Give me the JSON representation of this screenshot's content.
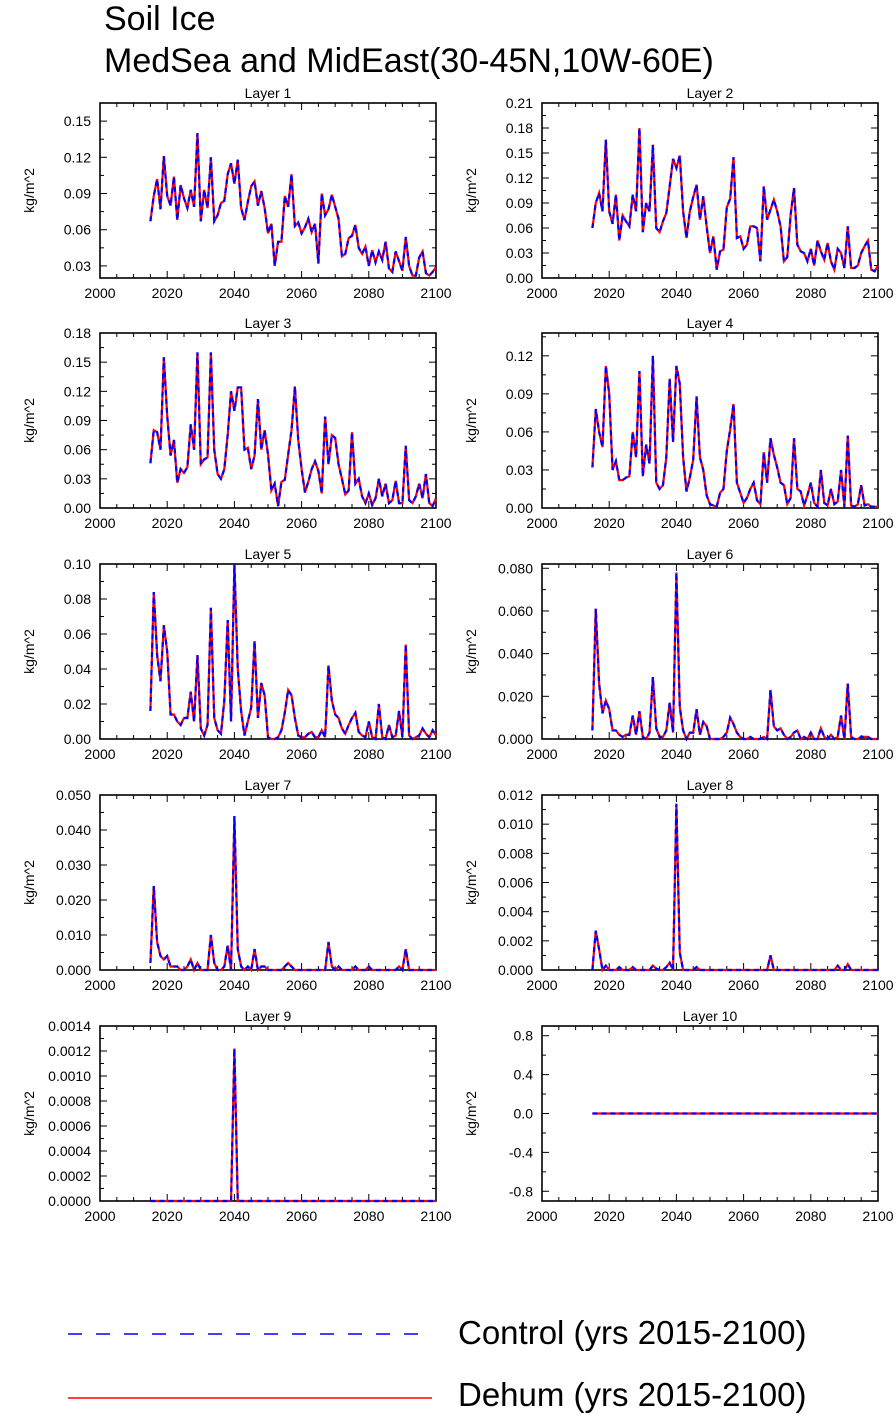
{
  "title_line1": "Soil Ice",
  "title_line2": "MedSea and MidEast(30-45N,10W-60E)",
  "legend": {
    "control_label": "Control (yrs 2015-2100)",
    "dehum_label": "Dehum (yrs 2015-2100)"
  },
  "colors": {
    "control": "#0000ff",
    "dehum": "#ff0000",
    "axis": "#000000"
  },
  "chart_data": [
    {
      "type": "line",
      "title": "Layer 1",
      "ylabel": "kg/m^2",
      "xlim": [
        2000,
        2100
      ],
      "ylim": [
        0.02,
        0.165
      ],
      "xticks": [
        2000,
        2020,
        2040,
        2060,
        2080,
        2100
      ],
      "yticks": [
        0.03,
        0.06,
        0.09,
        0.12,
        0.15
      ],
      "ytick_labels": [
        "0.03",
        "0.06",
        "0.09",
        "0.12",
        "0.15"
      ],
      "x_start": 2015,
      "values": [
        0.067,
        0.088,
        0.102,
        0.077,
        0.121,
        0.088,
        0.08,
        0.104,
        0.068,
        0.097,
        0.086,
        0.078,
        0.093,
        0.079,
        0.14,
        0.067,
        0.093,
        0.078,
        0.12,
        0.067,
        0.072,
        0.082,
        0.084,
        0.106,
        0.115,
        0.098,
        0.118,
        0.078,
        0.068,
        0.083,
        0.096,
        0.1,
        0.08,
        0.092,
        0.078,
        0.057,
        0.065,
        0.03,
        0.05,
        0.05,
        0.088,
        0.079,
        0.106,
        0.063,
        0.066,
        0.057,
        0.062,
        0.069,
        0.058,
        0.065,
        0.032,
        0.09,
        0.072,
        0.077,
        0.089,
        0.079,
        0.069,
        0.038,
        0.04,
        0.053,
        0.055,
        0.064,
        0.045,
        0.04,
        0.046,
        0.03,
        0.043,
        0.033,
        0.042,
        0.035,
        0.05,
        0.028,
        0.025,
        0.042,
        0.034,
        0.026,
        0.054,
        0.03,
        0.022,
        0.022,
        0.037,
        0.042,
        0.024,
        0.022,
        0.025,
        0.029
      ]
    },
    {
      "type": "line",
      "title": "Layer 2",
      "ylabel": "kg/m^2",
      "xlim": [
        2000,
        2100
      ],
      "ylim": [
        0.0,
        0.21
      ],
      "xticks": [
        2000,
        2020,
        2040,
        2060,
        2080,
        2100
      ],
      "yticks": [
        0.0,
        0.03,
        0.06,
        0.09,
        0.12,
        0.15,
        0.18,
        0.21
      ],
      "ytick_labels": [
        "0.00",
        "0.03",
        "0.06",
        "0.09",
        "0.12",
        "0.15",
        "0.18",
        "0.21"
      ],
      "x_start": 2015,
      "values": [
        0.06,
        0.09,
        0.102,
        0.08,
        0.166,
        0.08,
        0.065,
        0.1,
        0.045,
        0.075,
        0.068,
        0.062,
        0.1,
        0.08,
        0.18,
        0.055,
        0.09,
        0.08,
        0.16,
        0.06,
        0.055,
        0.068,
        0.078,
        0.11,
        0.143,
        0.132,
        0.147,
        0.08,
        0.048,
        0.08,
        0.097,
        0.112,
        0.07,
        0.098,
        0.062,
        0.03,
        0.05,
        0.01,
        0.032,
        0.034,
        0.085,
        0.095,
        0.145,
        0.048,
        0.05,
        0.035,
        0.04,
        0.062,
        0.062,
        0.06,
        0.02,
        0.11,
        0.07,
        0.082,
        0.094,
        0.08,
        0.062,
        0.02,
        0.025,
        0.076,
        0.108,
        0.04,
        0.032,
        0.03,
        0.02,
        0.035,
        0.015,
        0.045,
        0.032,
        0.022,
        0.042,
        0.02,
        0.01,
        0.035,
        0.03,
        0.012,
        0.062,
        0.012,
        0.012,
        0.015,
        0.03,
        0.038,
        0.045,
        0.01,
        0.008,
        0.015
      ]
    },
    {
      "type": "line",
      "title": "Layer 3",
      "ylabel": "kg/m^2",
      "xlim": [
        2000,
        2100
      ],
      "ylim": [
        0.0,
        0.18
      ],
      "xticks": [
        2000,
        2020,
        2040,
        2060,
        2080,
        2100
      ],
      "yticks": [
        0.0,
        0.03,
        0.06,
        0.09,
        0.12,
        0.15,
        0.18
      ],
      "ytick_labels": [
        "0.00",
        "0.03",
        "0.06",
        "0.09",
        "0.12",
        "0.15",
        "0.18"
      ],
      "x_start": 2015,
      "values": [
        0.046,
        0.08,
        0.078,
        0.06,
        0.155,
        0.095,
        0.054,
        0.07,
        0.026,
        0.04,
        0.036,
        0.042,
        0.086,
        0.06,
        0.16,
        0.045,
        0.05,
        0.052,
        0.16,
        0.06,
        0.035,
        0.03,
        0.04,
        0.075,
        0.12,
        0.1,
        0.124,
        0.124,
        0.06,
        0.062,
        0.04,
        0.054,
        0.112,
        0.06,
        0.08,
        0.055,
        0.018,
        0.025,
        0.002,
        0.027,
        0.029,
        0.055,
        0.08,
        0.125,
        0.07,
        0.04,
        0.016,
        0.027,
        0.04,
        0.048,
        0.038,
        0.015,
        0.094,
        0.045,
        0.075,
        0.072,
        0.045,
        0.03,
        0.014,
        0.018,
        0.078,
        0.025,
        0.03,
        0.012,
        0.005,
        0.015,
        0.003,
        0.01,
        0.03,
        0.012,
        0.025,
        0.005,
        0.008,
        0.028,
        0.005,
        0.005,
        0.064,
        0.008,
        0.005,
        0.012,
        0.025,
        0.01,
        0.035,
        0.005,
        0.002,
        0.01
      ]
    },
    {
      "type": "line",
      "title": "Layer 4",
      "ylabel": "kg/m^2",
      "xlim": [
        2000,
        2100
      ],
      "ylim": [
        0.0,
        0.138
      ],
      "xticks": [
        2000,
        2020,
        2040,
        2060,
        2080,
        2100
      ],
      "yticks": [
        0.0,
        0.03,
        0.06,
        0.09,
        0.12
      ],
      "ytick_labels": [
        "0.00",
        "0.03",
        "0.06",
        "0.09",
        "0.12"
      ],
      "x_start": 2015,
      "values": [
        0.032,
        0.078,
        0.06,
        0.048,
        0.112,
        0.09,
        0.03,
        0.037,
        0.022,
        0.022,
        0.024,
        0.025,
        0.06,
        0.04,
        0.108,
        0.025,
        0.05,
        0.035,
        0.12,
        0.02,
        0.015,
        0.018,
        0.04,
        0.102,
        0.052,
        0.112,
        0.098,
        0.04,
        0.013,
        0.024,
        0.038,
        0.088,
        0.04,
        0.03,
        0.01,
        0.003,
        0.002,
        0.001,
        0.012,
        0.015,
        0.045,
        0.062,
        0.082,
        0.02,
        0.012,
        0.004,
        0.008,
        0.015,
        0.02,
        0.006,
        0.003,
        0.044,
        0.02,
        0.055,
        0.042,
        0.032,
        0.02,
        0.018,
        0.003,
        0.008,
        0.055,
        0.015,
        0.013,
        0.002,
        0.01,
        0.02,
        0.004,
        0.001,
        0.03,
        0.004,
        0.002,
        0.015,
        0.003,
        0.005,
        0.03,
        0.001,
        0.057,
        0.002,
        0.001,
        0.003,
        0.018,
        0.002,
        0.003,
        0.001,
        0.001,
        0.001
      ]
    },
    {
      "type": "line",
      "title": "Layer 5",
      "ylabel": "kg/m^2",
      "xlim": [
        2000,
        2100
      ],
      "ylim": [
        0.0,
        0.1
      ],
      "xticks": [
        2000,
        2020,
        2040,
        2060,
        2080,
        2100
      ],
      "yticks": [
        0.0,
        0.02,
        0.04,
        0.06,
        0.08,
        0.1
      ],
      "ytick_labels": [
        "0.00",
        "0.02",
        "0.04",
        "0.06",
        "0.08",
        "0.10"
      ],
      "x_start": 2015,
      "values": [
        0.016,
        0.084,
        0.048,
        0.033,
        0.065,
        0.05,
        0.014,
        0.014,
        0.01,
        0.008,
        0.012,
        0.012,
        0.027,
        0.01,
        0.048,
        0.006,
        0.002,
        0.008,
        0.075,
        0.012,
        0.005,
        0.003,
        0.022,
        0.068,
        0.01,
        0.1,
        0.04,
        0.016,
        0.002,
        0.01,
        0.018,
        0.056,
        0.012,
        0.032,
        0.025,
        0.001,
        0.0,
        0.0,
        0.001,
        0.005,
        0.015,
        0.028,
        0.025,
        0.012,
        0.002,
        0.001,
        0.001,
        0.003,
        0.004,
        0.001,
        0.001,
        0.005,
        0.001,
        0.042,
        0.022,
        0.014,
        0.012,
        0.006,
        0.003,
        0.008,
        0.012,
        0.015,
        0.004,
        0.002,
        0.001,
        0.01,
        0.001,
        0.0,
        0.02,
        0.001,
        0.0,
        0.008,
        0.001,
        0.002,
        0.016,
        0.001,
        0.054,
        0.002,
        0.0,
        0.001,
        0.002,
        0.006,
        0.003,
        0.001,
        0.005,
        0.002
      ]
    },
    {
      "type": "line",
      "title": "Layer 6",
      "ylabel": "kg/m^2",
      "xlim": [
        2000,
        2100
      ],
      "ylim": [
        0.0,
        0.082
      ],
      "xticks": [
        2000,
        2020,
        2040,
        2060,
        2080,
        2100
      ],
      "yticks": [
        0.0,
        0.02,
        0.04,
        0.06,
        0.08
      ],
      "ytick_labels": [
        "0.000",
        "0.020",
        "0.040",
        "0.060",
        "0.080"
      ],
      "x_start": 2015,
      "values": [
        0.004,
        0.061,
        0.026,
        0.012,
        0.018,
        0.014,
        0.004,
        0.004,
        0.002,
        0.001,
        0.002,
        0.002,
        0.011,
        0.002,
        0.013,
        0.001,
        0.0,
        0.003,
        0.029,
        0.005,
        0.001,
        0.001,
        0.004,
        0.017,
        0.003,
        0.078,
        0.015,
        0.004,
        0.0,
        0.003,
        0.003,
        0.014,
        0.002,
        0.008,
        0.006,
        0.0,
        0.0,
        0.0,
        0.0,
        0.001,
        0.003,
        0.01,
        0.007,
        0.003,
        0.001,
        0.0,
        0.0,
        0.001,
        0.0,
        0.0,
        0.0,
        0.001,
        0.0,
        0.023,
        0.006,
        0.004,
        0.005,
        0.002,
        0.0,
        0.001,
        0.003,
        0.004,
        0.0,
        0.001,
        0.0,
        0.003,
        0.0,
        0.0,
        0.005,
        0.001,
        0.0,
        0.002,
        0.0,
        0.001,
        0.011,
        0.0,
        0.026,
        0.001,
        0.0,
        0.0,
        0.001,
        0.001,
        0.001,
        0.0,
        0.0,
        0.0
      ]
    },
    {
      "type": "line",
      "title": "Layer 7",
      "ylabel": "kg/m^2",
      "xlim": [
        2000,
        2100
      ],
      "ylim": [
        0.0,
        0.05
      ],
      "xticks": [
        2000,
        2020,
        2040,
        2060,
        2080,
        2100
      ],
      "yticks": [
        0.0,
        0.01,
        0.02,
        0.03,
        0.04,
        0.05
      ],
      "ytick_labels": [
        "0.000",
        "0.010",
        "0.020",
        "0.030",
        "0.040",
        "0.050"
      ],
      "x_start": 2015,
      "values": [
        0.002,
        0.024,
        0.008,
        0.004,
        0.003,
        0.004,
        0.001,
        0.001,
        0.001,
        0.0,
        0.0,
        0.001,
        0.003,
        0.0,
        0.002,
        0.0,
        0.0,
        0.0,
        0.01,
        0.002,
        0.0,
        0.0,
        0.001,
        0.007,
        0.0,
        0.044,
        0.006,
        0.001,
        0.0,
        0.001,
        0.0,
        0.006,
        0.0,
        0.001,
        0.001,
        0.0,
        0.0,
        0.0,
        0.0,
        0.0,
        0.001,
        0.002,
        0.001,
        0.0,
        0.0,
        0.0,
        0.0,
        0.0,
        0.0,
        0.0,
        0.0,
        0.0,
        0.0,
        0.008,
        0.001,
        0.0,
        0.001,
        0.0,
        0.0,
        0.0,
        0.0,
        0.001,
        0.0,
        0.0,
        0.0,
        0.001,
        0.0,
        0.0,
        0.0,
        0.0,
        0.0,
        0.0,
        0.0,
        0.0,
        0.001,
        0.0,
        0.006,
        0.0,
        0.0,
        0.0,
        0.0,
        0.0,
        0.0,
        0.0,
        0.0,
        0.0
      ]
    },
    {
      "type": "line",
      "title": "Layer 8",
      "ylabel": "kg/m^2",
      "xlim": [
        2000,
        2100
      ],
      "ylim": [
        0.0,
        0.012
      ],
      "xticks": [
        2000,
        2020,
        2040,
        2060,
        2080,
        2100
      ],
      "yticks": [
        0.0,
        0.002,
        0.004,
        0.006,
        0.008,
        0.01,
        0.012
      ],
      "ytick_labels": [
        "0.000",
        "0.002",
        "0.004",
        "0.006",
        "0.008",
        "0.010",
        "0.012"
      ],
      "x_start": 2015,
      "values": [
        0.0,
        0.0027,
        0.0014,
        0.0,
        0.0003,
        0.0,
        0.0,
        0.0,
        0.0002,
        0.0,
        0.0,
        0.0,
        0.0002,
        0.0,
        0.0,
        0.0,
        0.0,
        0.0,
        0.0003,
        0.0001,
        0.0,
        0.0,
        0.0002,
        0.0005,
        0.0,
        0.0114,
        0.0012,
        0.0,
        0.0,
        0.0,
        0.0,
        0.0002,
        0.0,
        0.0,
        0.0,
        0.0,
        0.0,
        0.0,
        0.0,
        0.0,
        0.0,
        0.0,
        0.0,
        0.0,
        0.0,
        0.0,
        0.0,
        0.0,
        0.0,
        0.0,
        0.0,
        0.0,
        0.0,
        0.001,
        0.0,
        0.0,
        0.0,
        0.0,
        0.0,
        0.0,
        0.0,
        0.0,
        0.0,
        0.0,
        0.0,
        0.0,
        0.0,
        0.0,
        0.0,
        0.0,
        0.0,
        0.0,
        0.0,
        0.0003,
        0.0,
        0.0,
        0.0004,
        0.0,
        0.0,
        0.0,
        0.0,
        0.0,
        0.0,
        0.0,
        0.0,
        0.0
      ]
    },
    {
      "type": "line",
      "title": "Layer 9",
      "ylabel": "kg/m^2",
      "xlim": [
        2000,
        2100
      ],
      "ylim": [
        0.0,
        0.0014
      ],
      "xticks": [
        2000,
        2020,
        2040,
        2060,
        2080,
        2100
      ],
      "yticks": [
        0.0,
        0.0002,
        0.0004,
        0.0006,
        0.0008,
        0.001,
        0.0012,
        0.0014
      ],
      "ytick_labels": [
        "0.0000",
        "0.0002",
        "0.0004",
        "0.0006",
        "0.0008",
        "0.0010",
        "0.0012",
        "0.0014"
      ],
      "x_start": 2015,
      "values": [
        0,
        0,
        0,
        0,
        0,
        0,
        0,
        0,
        0,
        0,
        0,
        0,
        0,
        0,
        0,
        0,
        0,
        0,
        0,
        0,
        0,
        0,
        0,
        0,
        0,
        0.00122,
        0,
        0,
        0,
        0,
        0,
        0,
        0,
        0,
        0,
        0,
        0,
        0,
        0,
        0,
        0,
        0,
        0,
        0,
        0,
        0,
        0,
        0,
        0,
        0,
        0,
        0,
        0,
        0,
        0,
        0,
        0,
        0,
        0,
        0,
        0,
        0,
        0,
        0,
        0,
        0,
        0,
        0,
        0,
        0,
        0,
        0,
        0,
        0,
        0,
        0,
        0,
        0,
        0,
        0,
        0,
        0,
        0,
        0,
        0,
        0
      ]
    },
    {
      "type": "line",
      "title": "Layer 10",
      "ylabel": "kg/m^2",
      "xlim": [
        2000,
        2100
      ],
      "ylim": [
        -0.9,
        0.9
      ],
      "xticks": [
        2000,
        2020,
        2040,
        2060,
        2080,
        2100
      ],
      "yticks": [
        -0.8,
        -0.4,
        0.0,
        0.4,
        0.8
      ],
      "ytick_labels": [
        "-0.8",
        "-0.4",
        "0.0",
        "0.4",
        "0.8"
      ],
      "x_start": 2015,
      "values": [
        0,
        0,
        0,
        0,
        0,
        0,
        0,
        0,
        0,
        0,
        0,
        0,
        0,
        0,
        0,
        0,
        0,
        0,
        0,
        0,
        0,
        0,
        0,
        0,
        0,
        0,
        0,
        0,
        0,
        0,
        0,
        0,
        0,
        0,
        0,
        0,
        0,
        0,
        0,
        0,
        0,
        0,
        0,
        0,
        0,
        0,
        0,
        0,
        0,
        0,
        0,
        0,
        0,
        0,
        0,
        0,
        0,
        0,
        0,
        0,
        0,
        0,
        0,
        0,
        0,
        0,
        0,
        0,
        0,
        0,
        0,
        0,
        0,
        0,
        0,
        0,
        0,
        0,
        0,
        0,
        0,
        0,
        0,
        0,
        0,
        0
      ]
    }
  ]
}
